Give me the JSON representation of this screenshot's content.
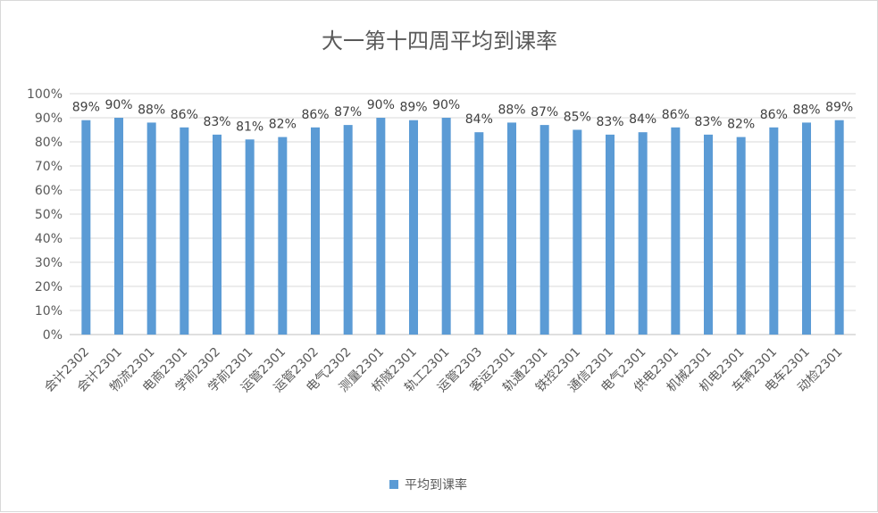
{
  "chart_data": {
    "type": "bar",
    "title": "大一第十四周平均到课率",
    "categories": [
      "会计2302",
      "会计2301",
      "物流2301",
      "电商2301",
      "学前2302",
      "学前2301",
      "运管2301",
      "运管2302",
      "电气2302",
      "测量2301",
      "桥隧2301",
      "轨工2301",
      "运管2303",
      "客运2301",
      "轨通2301",
      "铁控2301",
      "通信2301",
      "电气2301",
      "供电2301",
      "机械2301",
      "机电2301",
      "车辆2301",
      "电车2301",
      "动检2301"
    ],
    "series": [
      {
        "name": "平均到课率",
        "values": [
          89,
          90,
          88,
          86,
          83,
          81,
          82,
          86,
          87,
          90,
          89,
          90,
          84,
          88,
          87,
          85,
          83,
          84,
          86,
          83,
          82,
          86,
          88,
          89
        ],
        "labels": [
          "89%",
          "90%",
          "88%",
          "86%",
          "83%",
          "81%",
          "82%",
          "86%",
          "87%",
          "90%",
          "89%",
          "90%",
          "84%",
          "88%",
          "87%",
          "85%",
          "83%",
          "84%",
          "86%",
          "83%",
          "82%",
          "86%",
          "88%",
          "89%"
        ]
      }
    ],
    "ylim": [
      0,
      100
    ],
    "yticks": [
      "0%",
      "10%",
      "20%",
      "30%",
      "40%",
      "50%",
      "60%",
      "70%",
      "80%",
      "90%",
      "100%"
    ],
    "grid": true,
    "legend_position": "bottom",
    "colors": {
      "bar": "#5B9BD5",
      "grid": "#d9d9d9",
      "text": "#595959"
    }
  }
}
